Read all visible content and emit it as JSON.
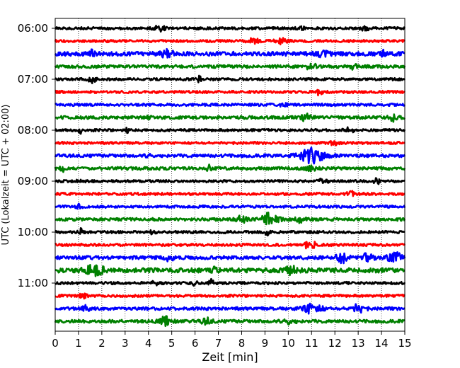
{
  "chart_data": {
    "type": "line",
    "chart_kind": "helicorder",
    "xlabel": "Zeit  [min]",
    "ylabel": "UTC (Lokalzeit = UTC + 02:00)",
    "xlim": [
      0,
      15
    ],
    "x_ticks": [
      0,
      1,
      2,
      3,
      4,
      5,
      6,
      7,
      8,
      9,
      10,
      11,
      12,
      13,
      14,
      15
    ],
    "y_tick_labels": [
      "06:00",
      "07:00",
      "08:00",
      "09:00",
      "10:00",
      "11:00"
    ],
    "grid": "vertical dotted",
    "trace_colors": [
      "#000000",
      "#ff0000",
      "#0000ff",
      "#008000"
    ],
    "traces": [
      {
        "start": "06:00",
        "color": "#000000",
        "base_amp": 0.1,
        "events": [
          {
            "t": 4.5,
            "amp": 0.22,
            "dur": 0.4
          },
          {
            "t": 10.5,
            "amp": 0.14,
            "dur": 0.3
          },
          {
            "t": 13.3,
            "amp": 0.14,
            "dur": 0.3
          }
        ]
      },
      {
        "start": "06:15",
        "color": "#ff0000",
        "base_amp": 0.1,
        "events": [
          {
            "t": 8.5,
            "amp": 0.18,
            "dur": 0.4
          },
          {
            "t": 9.7,
            "amp": 0.18,
            "dur": 0.4
          }
        ]
      },
      {
        "start": "06:30",
        "color": "#0000ff",
        "base_amp": 0.16,
        "events": [
          {
            "t": 1.6,
            "amp": 0.32,
            "dur": 0.1
          },
          {
            "t": 4.8,
            "amp": 0.32,
            "dur": 0.4
          },
          {
            "t": 14.1,
            "amp": 0.32,
            "dur": 0.15
          },
          {
            "t": 11.5,
            "amp": 0.22,
            "dur": 0.4
          }
        ]
      },
      {
        "start": "06:45",
        "color": "#008000",
        "base_amp": 0.12,
        "events": [
          {
            "t": 11.0,
            "amp": 0.28,
            "dur": 0.3
          },
          {
            "t": 12.8,
            "amp": 0.28,
            "dur": 0.15
          }
        ]
      },
      {
        "start": "07:00",
        "color": "#000000",
        "base_amp": 0.1,
        "events": [
          {
            "t": 1.6,
            "amp": 0.24,
            "dur": 0.3
          },
          {
            "t": 6.2,
            "amp": 0.3,
            "dur": 0.05
          }
        ]
      },
      {
        "start": "07:15",
        "color": "#ff0000",
        "base_amp": 0.1,
        "events": [
          {
            "t": 11.3,
            "amp": 0.2,
            "dur": 0.3
          }
        ]
      },
      {
        "start": "07:30",
        "color": "#0000ff",
        "base_amp": 0.1,
        "events": [
          {
            "t": 9.8,
            "amp": 0.14,
            "dur": 0.3
          }
        ]
      },
      {
        "start": "07:45",
        "color": "#008000",
        "base_amp": 0.12,
        "events": [
          {
            "t": 4.0,
            "amp": 0.18,
            "dur": 0.1
          },
          {
            "t": 10.8,
            "amp": 0.34,
            "dur": 0.3
          },
          {
            "t": 14.5,
            "amp": 0.26,
            "dur": 0.3
          }
        ]
      },
      {
        "start": "08:00",
        "color": "#000000",
        "base_amp": 0.1,
        "events": [
          {
            "t": 1.1,
            "amp": 0.28,
            "dur": 0.1
          },
          {
            "t": 3.1,
            "amp": 0.2,
            "dur": 0.1
          },
          {
            "t": 12.6,
            "amp": 0.2,
            "dur": 0.3
          }
        ]
      },
      {
        "start": "08:15",
        "color": "#ff0000",
        "base_amp": 0.1,
        "events": [
          {
            "t": 12.0,
            "amp": 0.14,
            "dur": 0.4
          }
        ]
      },
      {
        "start": "08:30",
        "color": "#0000ff",
        "base_amp": 0.12,
        "events": [
          {
            "t": 4.0,
            "amp": 0.16,
            "dur": 0.2
          },
          {
            "t": 11.0,
            "amp": 0.55,
            "dur": 1.0
          }
        ]
      },
      {
        "start": "08:45",
        "color": "#008000",
        "base_amp": 0.12,
        "events": [
          {
            "t": 0.3,
            "amp": 0.26,
            "dur": 0.1
          },
          {
            "t": 6.6,
            "amp": 0.24,
            "dur": 0.1
          },
          {
            "t": 11.0,
            "amp": 0.14,
            "dur": 0.5
          }
        ]
      },
      {
        "start": "09:00",
        "color": "#000000",
        "base_amp": 0.1,
        "events": [
          {
            "t": 1.0,
            "amp": 0.32,
            "dur": 0.05
          },
          {
            "t": 11.5,
            "amp": 0.18,
            "dur": 0.3
          },
          {
            "t": 13.8,
            "amp": 0.2,
            "dur": 0.2
          }
        ]
      },
      {
        "start": "09:15",
        "color": "#ff0000",
        "base_amp": 0.1,
        "events": [
          {
            "t": 12.7,
            "amp": 0.18,
            "dur": 0.3
          }
        ]
      },
      {
        "start": "09:30",
        "color": "#0000ff",
        "base_amp": 0.1,
        "events": [
          {
            "t": 1.0,
            "amp": 0.14,
            "dur": 0.2
          }
        ]
      },
      {
        "start": "09:45",
        "color": "#008000",
        "base_amp": 0.12,
        "events": [
          {
            "t": 8.0,
            "amp": 0.28,
            "dur": 0.3
          },
          {
            "t": 9.2,
            "amp": 0.45,
            "dur": 0.6
          },
          {
            "t": 10.5,
            "amp": 0.2,
            "dur": 0.3
          }
        ]
      },
      {
        "start": "10:00",
        "color": "#000000",
        "base_amp": 0.1,
        "events": [
          {
            "t": 1.1,
            "amp": 0.3,
            "dur": 0.1
          },
          {
            "t": 9.1,
            "amp": 0.26,
            "dur": 0.1
          },
          {
            "t": 4.2,
            "amp": 0.16,
            "dur": 0.2
          }
        ]
      },
      {
        "start": "10:15",
        "color": "#ff0000",
        "base_amp": 0.1,
        "events": [
          {
            "t": 11.1,
            "amp": 0.32,
            "dur": 0.05
          },
          {
            "t": 10.8,
            "amp": 0.2,
            "dur": 0.2
          }
        ]
      },
      {
        "start": "10:30",
        "color": "#0000ff",
        "base_amp": 0.14,
        "events": [
          {
            "t": 4.9,
            "amp": 0.2,
            "dur": 0.3
          },
          {
            "t": 12.3,
            "amp": 0.34,
            "dur": 0.4
          },
          {
            "t": 13.4,
            "amp": 0.3,
            "dur": 0.4
          },
          {
            "t": 14.6,
            "amp": 0.4,
            "dur": 0.5
          }
        ]
      },
      {
        "start": "10:45",
        "color": "#008000",
        "base_amp": 0.18,
        "events": [
          {
            "t": 1.7,
            "amp": 0.36,
            "dur": 0.8
          },
          {
            "t": 6.8,
            "amp": 0.24,
            "dur": 0.2
          },
          {
            "t": 10.1,
            "amp": 0.32,
            "dur": 0.4
          }
        ]
      },
      {
        "start": "11:00",
        "color": "#000000",
        "base_amp": 0.1,
        "events": [
          {
            "t": 4.3,
            "amp": 0.22,
            "dur": 0.2
          },
          {
            "t": 6.7,
            "amp": 0.28,
            "dur": 0.1
          },
          {
            "t": 6.0,
            "amp": 0.2,
            "dur": 0.1
          }
        ]
      },
      {
        "start": "11:15",
        "color": "#ff0000",
        "base_amp": 0.1,
        "events": [
          {
            "t": 1.2,
            "amp": 0.16,
            "dur": 0.2
          }
        ]
      },
      {
        "start": "11:30",
        "color": "#0000ff",
        "base_amp": 0.12,
        "events": [
          {
            "t": 1.3,
            "amp": 0.2,
            "dur": 0.4
          },
          {
            "t": 11.0,
            "amp": 0.4,
            "dur": 0.8
          },
          {
            "t": 13.0,
            "amp": 0.3,
            "dur": 0.5
          }
        ]
      },
      {
        "start": "11:45",
        "color": "#008000",
        "base_amp": 0.12,
        "events": [
          {
            "t": 4.7,
            "amp": 0.4,
            "dur": 0.5
          },
          {
            "t": 6.5,
            "amp": 0.2,
            "dur": 0.4
          },
          {
            "t": 10.0,
            "amp": 0.18,
            "dur": 0.5
          }
        ]
      }
    ]
  }
}
